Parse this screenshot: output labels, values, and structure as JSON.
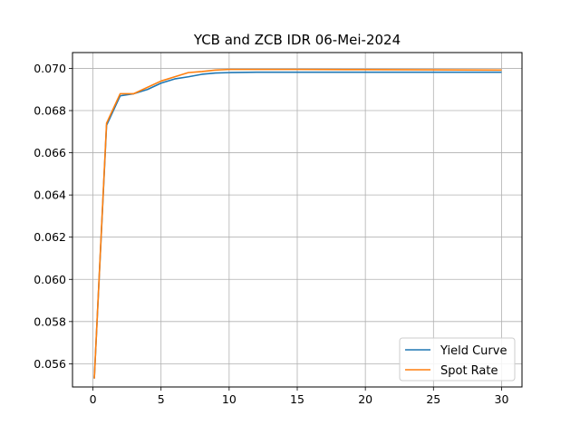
{
  "chart_data": {
    "type": "line",
    "title": "YCB and ZCB IDR 06-Mei-2024",
    "xlabel": "",
    "ylabel": "",
    "xlim": [
      -1.5,
      31.5
    ],
    "ylim": [
      0.0549,
      0.07075
    ],
    "grid": true,
    "legend_position": "lower-right",
    "x_ticks": [
      0,
      5,
      10,
      15,
      20,
      25,
      30
    ],
    "y_ticks": [
      0.056,
      0.058,
      0.06,
      0.062,
      0.064,
      0.066,
      0.068,
      0.07
    ],
    "x_tick_labels": [
      "0",
      "5",
      "10",
      "15",
      "20",
      "25",
      "30"
    ],
    "y_tick_labels": [
      "0.056",
      "0.058",
      "0.060",
      "0.062",
      "0.064",
      "0.066",
      "0.068",
      "0.070"
    ],
    "x": [
      0.1,
      1,
      2,
      3,
      4,
      5,
      6,
      7,
      8,
      9,
      10,
      12,
      15,
      20,
      25,
      30
    ],
    "series": [
      {
        "name": "Yield Curve",
        "color": "#1f77b4",
        "values": [
          0.0553,
          0.0673,
          0.0687,
          0.0688,
          0.069,
          0.0693,
          0.0695,
          0.0696,
          0.06972,
          0.06978,
          0.0698,
          0.06982,
          0.06982,
          0.06982,
          0.06982,
          0.06982
        ]
      },
      {
        "name": "Spot Rate",
        "color": "#ff7f0e",
        "values": [
          0.0553,
          0.0674,
          0.0688,
          0.0688,
          0.0691,
          0.0694,
          0.0696,
          0.0698,
          0.06985,
          0.06992,
          0.06995,
          0.06995,
          0.06995,
          0.06994,
          0.06993,
          0.06992
        ]
      }
    ]
  }
}
